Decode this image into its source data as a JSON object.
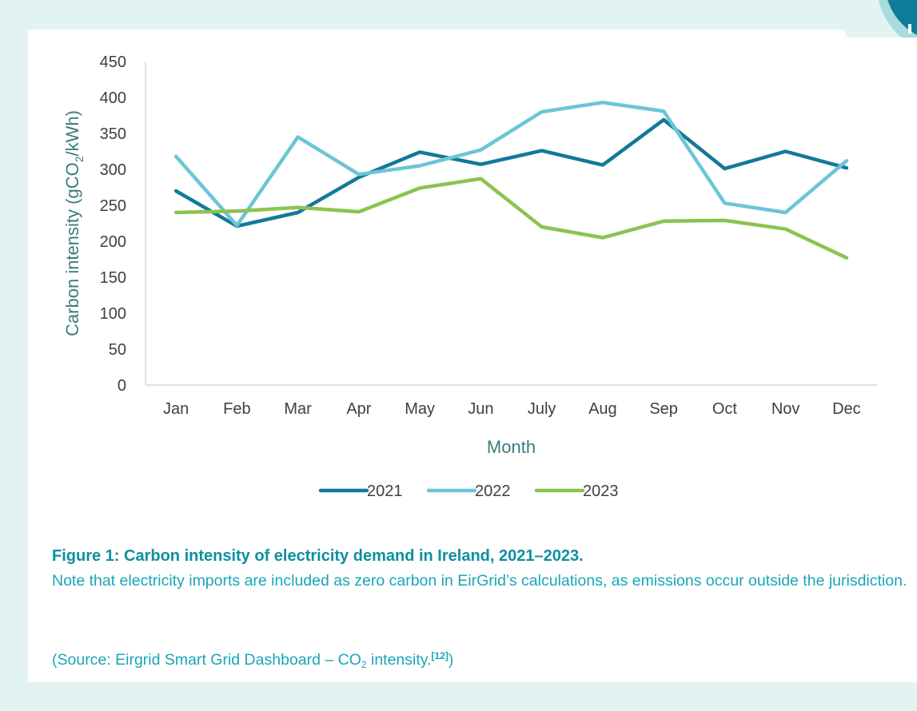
{
  "chart_data": {
    "type": "line",
    "title": "",
    "xlabel": "Month",
    "ylabel_prefix": "Carbon intensity (gCO",
    "ylabel_sub": "2",
    "ylabel_suffix": "/kWh)",
    "ylim": [
      0,
      450
    ],
    "yticks": [
      0,
      50,
      100,
      150,
      200,
      250,
      300,
      350,
      400,
      450
    ],
    "grid": false,
    "legend_position": "bottom",
    "categories": [
      "Jan",
      "Feb",
      "Mar",
      "Apr",
      "May",
      "Jun",
      "July",
      "Aug",
      "Sep",
      "Oct",
      "Nov",
      "Dec"
    ],
    "series": [
      {
        "name": "2021",
        "color": "#13799a",
        "values": [
          270,
          221,
          240,
          289,
          324,
          307,
          326,
          306,
          369,
          301,
          325,
          302
        ]
      },
      {
        "name": "2022",
        "color": "#6cc5d6",
        "values": [
          318,
          222,
          345,
          293,
          305,
          327,
          380,
          393,
          381,
          253,
          240,
          312
        ]
      },
      {
        "name": "2023",
        "color": "#8cc34f",
        "values": [
          240,
          242,
          247,
          241,
          274,
          287,
          220,
          205,
          228,
          229,
          217,
          177
        ]
      }
    ]
  },
  "caption": {
    "title": "Figure 1: Carbon intensity of electricity demand in Ireland, 2021–2023.",
    "note": "Note that electricity imports are included as zero carbon in EirGrid’s calculations, as emissions occur outside the jurisdiction.",
    "source_prefix": "(Source: Eirgrid Smart Grid Dashboard – CO",
    "source_sub": "2",
    "source_suffix": " intensity.",
    "source_ref": "[12]",
    "source_close": ")"
  },
  "colors": {
    "background": "#e3f3f3",
    "panel": "#ffffff",
    "axis_title": "#3d7a7a",
    "caption_title": "#0e8fa0",
    "caption_text": "#19a6b7"
  }
}
